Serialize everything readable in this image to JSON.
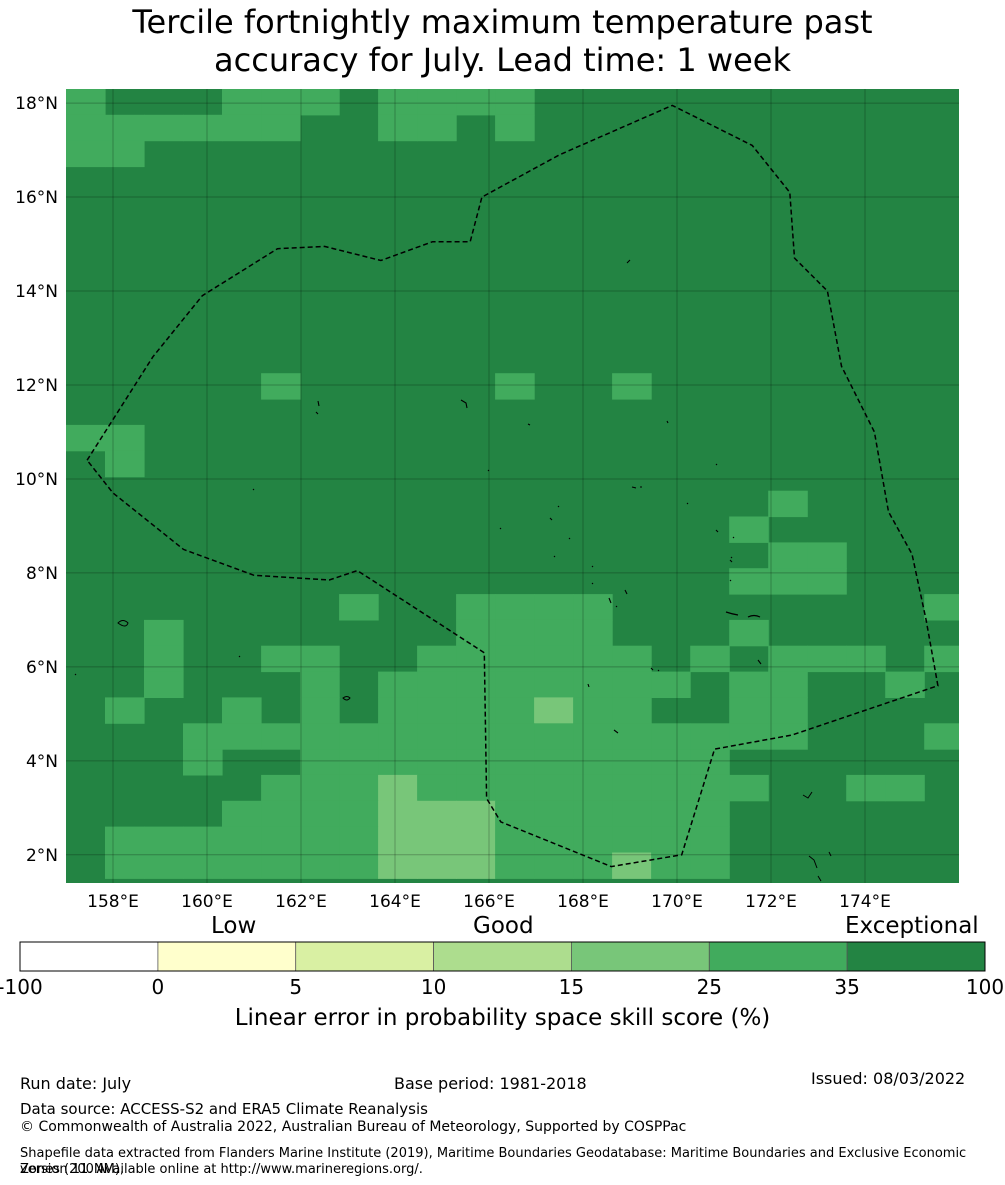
{
  "title": {
    "line1": "Tercile fortnightly maximum temperature past",
    "line2": "accuracy for July. Lead time: 1 week"
  },
  "map": {
    "lon_range": [
      157.0,
      176.0
    ],
    "lat_range": [
      1.4,
      18.3
    ],
    "lon_ticks": [
      "158°E",
      "160°E",
      "162°E",
      "164°E",
      "166°E",
      "168°E",
      "170°E",
      "172°E",
      "174°E"
    ],
    "lat_ticks": [
      "2°N",
      "4°N",
      "6°N",
      "8°N",
      "10°N",
      "12°N",
      "14°N",
      "16°N",
      "18°N"
    ],
    "base_category": 6,
    "grid_cells": [
      {
        "lon": 157.0,
        "lat": 17.75,
        "cat": 5
      },
      {
        "lon": 157.0,
        "lat": 17.2,
        "cat": 5
      },
      {
        "lon": 157.0,
        "lat": 16.65,
        "cat": 5
      },
      {
        "lon": 157.83,
        "lat": 17.2,
        "cat": 5
      },
      {
        "lon": 157.83,
        "lat": 16.65,
        "cat": 5
      },
      {
        "lon": 158.66,
        "lat": 17.2,
        "cat": 5
      },
      {
        "lon": 159.49,
        "lat": 17.2,
        "cat": 5
      },
      {
        "lon": 160.32,
        "lat": 17.75,
        "cat": 5
      },
      {
        "lon": 160.32,
        "lat": 17.2,
        "cat": 5
      },
      {
        "lon": 161.15,
        "lat": 17.75,
        "cat": 5
      },
      {
        "lon": 161.15,
        "lat": 17.2,
        "cat": 5
      },
      {
        "lon": 161.98,
        "lat": 17.75,
        "cat": 5
      },
      {
        "lon": 163.64,
        "lat": 17.75,
        "cat": 5
      },
      {
        "lon": 163.64,
        "lat": 17.2,
        "cat": 5
      },
      {
        "lon": 164.47,
        "lat": 17.75,
        "cat": 5
      },
      {
        "lon": 164.47,
        "lat": 17.2,
        "cat": 5
      },
      {
        "lon": 165.3,
        "lat": 17.75,
        "cat": 5
      },
      {
        "lon": 166.13,
        "lat": 17.75,
        "cat": 5
      },
      {
        "lon": 166.13,
        "lat": 17.2,
        "cat": 5
      },
      {
        "lon": 161.15,
        "lat": 11.7,
        "cat": 5
      },
      {
        "lon": 166.13,
        "lat": 11.7,
        "cat": 5
      },
      {
        "lon": 168.62,
        "lat": 11.7,
        "cat": 5
      },
      {
        "lon": 157.0,
        "lat": 10.6,
        "cat": 5
      },
      {
        "lon": 157.83,
        "lat": 10.6,
        "cat": 5
      },
      {
        "lon": 157.83,
        "lat": 10.05,
        "cat": 5
      },
      {
        "lon": 171.94,
        "lat": 9.2,
        "cat": 5
      },
      {
        "lon": 171.11,
        "lat": 8.65,
        "cat": 5
      },
      {
        "lon": 171.94,
        "lat": 8.1,
        "cat": 5
      },
      {
        "lon": 172.77,
        "lat": 8.1,
        "cat": 5
      },
      {
        "lon": 171.11,
        "lat": 7.55,
        "cat": 5
      },
      {
        "lon": 171.94,
        "lat": 7.55,
        "cat": 5
      },
      {
        "lon": 172.77,
        "lat": 7.55,
        "cat": 5
      },
      {
        "lon": 162.81,
        "lat": 7.0,
        "cat": 5
      },
      {
        "lon": 175.26,
        "lat": 7.0,
        "cat": 5
      },
      {
        "lon": 165.3,
        "lat": 7.0,
        "cat": 5
      },
      {
        "lon": 166.13,
        "lat": 7.0,
        "cat": 5
      },
      {
        "lon": 166.96,
        "lat": 7.0,
        "cat": 5
      },
      {
        "lon": 167.79,
        "lat": 7.0,
        "cat": 5
      },
      {
        "lon": 158.66,
        "lat": 6.45,
        "cat": 5
      },
      {
        "lon": 171.11,
        "lat": 6.45,
        "cat": 5
      },
      {
        "lon": 165.3,
        "lat": 6.45,
        "cat": 5
      },
      {
        "lon": 166.13,
        "lat": 6.45,
        "cat": 5
      },
      {
        "lon": 166.96,
        "lat": 6.45,
        "cat": 5
      },
      {
        "lon": 167.79,
        "lat": 6.45,
        "cat": 5
      },
      {
        "lon": 158.66,
        "lat": 5.9,
        "cat": 5
      },
      {
        "lon": 161.15,
        "lat": 5.9,
        "cat": 5
      },
      {
        "lon": 161.98,
        "lat": 5.9,
        "cat": 5
      },
      {
        "lon": 164.47,
        "lat": 5.9,
        "cat": 5
      },
      {
        "lon": 165.3,
        "lat": 5.9,
        "cat": 5
      },
      {
        "lon": 166.13,
        "lat": 5.9,
        "cat": 5
      },
      {
        "lon": 166.96,
        "lat": 5.9,
        "cat": 5
      },
      {
        "lon": 167.79,
        "lat": 5.9,
        "cat": 5
      },
      {
        "lon": 168.62,
        "lat": 5.9,
        "cat": 5
      },
      {
        "lon": 170.28,
        "lat": 5.9,
        "cat": 5
      },
      {
        "lon": 171.94,
        "lat": 5.9,
        "cat": 5
      },
      {
        "lon": 172.77,
        "lat": 5.9,
        "cat": 5
      },
      {
        "lon": 173.6,
        "lat": 5.9,
        "cat": 5
      },
      {
        "lon": 175.26,
        "lat": 5.9,
        "cat": 5
      },
      {
        "lon": 158.66,
        "lat": 5.35,
        "cat": 5
      },
      {
        "lon": 161.98,
        "lat": 5.35,
        "cat": 5
      },
      {
        "lon": 163.64,
        "lat": 5.35,
        "cat": 5
      },
      {
        "lon": 164.47,
        "lat": 5.35,
        "cat": 5
      },
      {
        "lon": 165.3,
        "lat": 5.35,
        "cat": 5
      },
      {
        "lon": 166.13,
        "lat": 5.35,
        "cat": 5
      },
      {
        "lon": 166.96,
        "lat": 5.35,
        "cat": 5
      },
      {
        "lon": 167.79,
        "lat": 5.35,
        "cat": 5
      },
      {
        "lon": 168.62,
        "lat": 5.35,
        "cat": 5
      },
      {
        "lon": 169.45,
        "lat": 5.35,
        "cat": 5
      },
      {
        "lon": 171.11,
        "lat": 5.35,
        "cat": 5
      },
      {
        "lon": 171.94,
        "lat": 5.35,
        "cat": 5
      },
      {
        "lon": 174.43,
        "lat": 5.35,
        "cat": 5
      },
      {
        "lon": 157.83,
        "lat": 4.8,
        "cat": 5
      },
      {
        "lon": 160.32,
        "lat": 4.8,
        "cat": 5
      },
      {
        "lon": 161.98,
        "lat": 4.8,
        "cat": 5
      },
      {
        "lon": 163.64,
        "lat": 4.8,
        "cat": 5
      },
      {
        "lon": 164.47,
        "lat": 4.8,
        "cat": 5
      },
      {
        "lon": 165.3,
        "lat": 4.8,
        "cat": 5
      },
      {
        "lon": 166.13,
        "lat": 4.8,
        "cat": 5
      },
      {
        "lon": 166.96,
        "lat": 4.8,
        "cat": 4
      },
      {
        "lon": 167.79,
        "lat": 4.8,
        "cat": 5
      },
      {
        "lon": 168.62,
        "lat": 4.8,
        "cat": 5
      },
      {
        "lon": 171.11,
        "lat": 4.8,
        "cat": 5
      },
      {
        "lon": 171.94,
        "lat": 4.8,
        "cat": 5
      },
      {
        "lon": 159.49,
        "lat": 4.25,
        "cat": 5
      },
      {
        "lon": 160.32,
        "lat": 4.25,
        "cat": 5
      },
      {
        "lon": 161.15,
        "lat": 4.25,
        "cat": 5
      },
      {
        "lon": 161.98,
        "lat": 4.25,
        "cat": 5
      },
      {
        "lon": 162.81,
        "lat": 4.25,
        "cat": 5
      },
      {
        "lon": 163.64,
        "lat": 4.25,
        "cat": 5
      },
      {
        "lon": 164.47,
        "lat": 4.25,
        "cat": 5
      },
      {
        "lon": 165.3,
        "lat": 4.25,
        "cat": 5
      },
      {
        "lon": 166.13,
        "lat": 4.25,
        "cat": 5
      },
      {
        "lon": 166.96,
        "lat": 4.25,
        "cat": 5
      },
      {
        "lon": 167.79,
        "lat": 4.25,
        "cat": 5
      },
      {
        "lon": 168.62,
        "lat": 4.25,
        "cat": 5
      },
      {
        "lon": 169.45,
        "lat": 4.25,
        "cat": 5
      },
      {
        "lon": 170.28,
        "lat": 4.25,
        "cat": 5
      },
      {
        "lon": 171.11,
        "lat": 4.25,
        "cat": 5
      },
      {
        "lon": 171.94,
        "lat": 4.25,
        "cat": 5
      },
      {
        "lon": 175.26,
        "lat": 4.25,
        "cat": 5
      },
      {
        "lon": 159.49,
        "lat": 3.7,
        "cat": 5
      },
      {
        "lon": 161.98,
        "lat": 3.7,
        "cat": 5
      },
      {
        "lon": 162.81,
        "lat": 3.7,
        "cat": 5
      },
      {
        "lon": 163.64,
        "lat": 3.7,
        "cat": 5
      },
      {
        "lon": 164.47,
        "lat": 3.7,
        "cat": 5
      },
      {
        "lon": 165.3,
        "lat": 3.7,
        "cat": 5
      },
      {
        "lon": 166.13,
        "lat": 3.7,
        "cat": 5
      },
      {
        "lon": 166.96,
        "lat": 3.7,
        "cat": 5
      },
      {
        "lon": 167.79,
        "lat": 3.7,
        "cat": 5
      },
      {
        "lon": 168.62,
        "lat": 3.7,
        "cat": 5
      },
      {
        "lon": 169.45,
        "lat": 3.7,
        "cat": 5
      },
      {
        "lon": 170.28,
        "lat": 3.7,
        "cat": 5
      },
      {
        "lon": 161.15,
        "lat": 3.15,
        "cat": 5
      },
      {
        "lon": 161.98,
        "lat": 3.15,
        "cat": 5
      },
      {
        "lon": 162.81,
        "lat": 3.15,
        "cat": 5
      },
      {
        "lon": 163.64,
        "lat": 3.15,
        "cat": 4
      },
      {
        "lon": 164.47,
        "lat": 3.15,
        "cat": 5
      },
      {
        "lon": 165.3,
        "lat": 3.15,
        "cat": 5
      },
      {
        "lon": 166.13,
        "lat": 3.15,
        "cat": 5
      },
      {
        "lon": 166.96,
        "lat": 3.15,
        "cat": 5
      },
      {
        "lon": 167.79,
        "lat": 3.15,
        "cat": 5
      },
      {
        "lon": 168.62,
        "lat": 3.15,
        "cat": 5
      },
      {
        "lon": 169.45,
        "lat": 3.15,
        "cat": 5
      },
      {
        "lon": 170.28,
        "lat": 3.15,
        "cat": 5
      },
      {
        "lon": 171.11,
        "lat": 3.15,
        "cat": 5
      },
      {
        "lon": 173.6,
        "lat": 3.15,
        "cat": 5
      },
      {
        "lon": 174.43,
        "lat": 3.15,
        "cat": 5
      },
      {
        "lon": 160.32,
        "lat": 2.6,
        "cat": 5
      },
      {
        "lon": 161.15,
        "lat": 2.6,
        "cat": 5
      },
      {
        "lon": 161.98,
        "lat": 2.6,
        "cat": 5
      },
      {
        "lon": 162.81,
        "lat": 2.6,
        "cat": 5
      },
      {
        "lon": 163.64,
        "lat": 2.6,
        "cat": 4
      },
      {
        "lon": 164.47,
        "lat": 2.6,
        "cat": 4
      },
      {
        "lon": 165.3,
        "lat": 2.6,
        "cat": 4
      },
      {
        "lon": 166.13,
        "lat": 2.6,
        "cat": 5
      },
      {
        "lon": 166.96,
        "lat": 2.6,
        "cat": 5
      },
      {
        "lon": 167.79,
        "lat": 2.6,
        "cat": 5
      },
      {
        "lon": 168.62,
        "lat": 2.6,
        "cat": 5
      },
      {
        "lon": 169.45,
        "lat": 2.6,
        "cat": 5
      },
      {
        "lon": 170.28,
        "lat": 2.6,
        "cat": 5
      },
      {
        "lon": 157.83,
        "lat": 2.05,
        "cat": 5
      },
      {
        "lon": 158.66,
        "lat": 2.05,
        "cat": 5
      },
      {
        "lon": 159.49,
        "lat": 2.05,
        "cat": 5
      },
      {
        "lon": 160.32,
        "lat": 2.05,
        "cat": 5
      },
      {
        "lon": 161.15,
        "lat": 2.05,
        "cat": 5
      },
      {
        "lon": 161.98,
        "lat": 2.05,
        "cat": 5
      },
      {
        "lon": 162.81,
        "lat": 2.05,
        "cat": 5
      },
      {
        "lon": 163.64,
        "lat": 2.05,
        "cat": 4
      },
      {
        "lon": 164.47,
        "lat": 2.05,
        "cat": 4
      },
      {
        "lon": 165.3,
        "lat": 2.05,
        "cat": 4
      },
      {
        "lon": 166.13,
        "lat": 2.05,
        "cat": 5
      },
      {
        "lon": 166.96,
        "lat": 2.05,
        "cat": 5
      },
      {
        "lon": 167.79,
        "lat": 2.05,
        "cat": 5
      },
      {
        "lon": 168.62,
        "lat": 2.05,
        "cat": 5
      },
      {
        "lon": 169.45,
        "lat": 2.05,
        "cat": 5
      },
      {
        "lon": 170.28,
        "lat": 2.05,
        "cat": 5
      },
      {
        "lon": 157.83,
        "lat": 1.5,
        "cat": 5
      },
      {
        "lon": 158.66,
        "lat": 1.5,
        "cat": 5
      },
      {
        "lon": 159.49,
        "lat": 1.5,
        "cat": 5
      },
      {
        "lon": 160.32,
        "lat": 1.5,
        "cat": 5
      },
      {
        "lon": 161.15,
        "lat": 1.5,
        "cat": 5
      },
      {
        "lon": 161.98,
        "lat": 1.5,
        "cat": 5
      },
      {
        "lon": 162.81,
        "lat": 1.5,
        "cat": 5
      },
      {
        "lon": 163.64,
        "lat": 1.5,
        "cat": 4
      },
      {
        "lon": 164.47,
        "lat": 1.5,
        "cat": 4
      },
      {
        "lon": 165.3,
        "lat": 1.5,
        "cat": 4
      },
      {
        "lon": 166.13,
        "lat": 1.5,
        "cat": 5
      },
      {
        "lon": 166.96,
        "lat": 1.5,
        "cat": 5
      },
      {
        "lon": 167.79,
        "lat": 1.5,
        "cat": 5
      },
      {
        "lon": 168.62,
        "lat": 1.5,
        "cat": 4
      },
      {
        "lon": 169.45,
        "lat": 1.5,
        "cat": 5
      },
      {
        "lon": 170.28,
        "lat": 1.5,
        "cat": 5
      }
    ],
    "eez_boundary": [
      [
        157.45,
        10.4
      ],
      [
        158.85,
        12.6
      ],
      [
        159.9,
        13.9
      ],
      [
        161.5,
        14.9
      ],
      [
        162.5,
        14.95
      ],
      [
        163.7,
        14.65
      ],
      [
        164.8,
        15.05
      ],
      [
        165.6,
        15.05
      ],
      [
        165.85,
        16.0
      ],
      [
        167.5,
        16.9
      ],
      [
        169.9,
        17.95
      ],
      [
        171.6,
        17.1
      ],
      [
        172.4,
        16.1
      ],
      [
        172.5,
        14.7
      ],
      [
        173.2,
        14.0
      ],
      [
        173.5,
        12.4
      ],
      [
        174.2,
        11.0
      ],
      [
        174.5,
        9.3
      ],
      [
        175.0,
        8.4
      ],
      [
        175.3,
        7.0
      ],
      [
        175.55,
        5.6
      ],
      [
        172.45,
        4.55
      ],
      [
        170.8,
        4.25
      ],
      [
        170.1,
        2.0
      ],
      [
        168.6,
        1.75
      ],
      [
        166.25,
        2.7
      ],
      [
        165.95,
        3.2
      ],
      [
        165.9,
        6.3
      ],
      [
        163.2,
        8.05
      ],
      [
        162.6,
        7.85
      ],
      [
        161.0,
        7.95
      ],
      [
        159.5,
        8.5
      ],
      [
        158.0,
        9.7
      ],
      [
        157.45,
        10.4
      ]
    ]
  },
  "colorbar": {
    "category_labels": [
      "Low",
      "Good",
      "Exceptional"
    ],
    "ticks": [
      "-100",
      "0",
      "5",
      "10",
      "15",
      "25",
      "35",
      "100"
    ],
    "colors": [
      "#ffffff",
      "#ffffcc",
      "#d9f0a3",
      "#addd8e",
      "#78c679",
      "#41ab5d",
      "#238443"
    ],
    "caption": "Linear error in probability space skill score (%)"
  },
  "footer": {
    "run_date": "Run date: July",
    "base_period": "Base period: 1981-2018",
    "issued": "Issued: 08/03/2022",
    "data_source": "Data source: ACCESS-S2 and ERA5 Climate Reanalysis",
    "copyright": "© Commonwealth of Australia 2022, Australian Bureau of Meteorology, Supported by COSPPac",
    "shapefile_line1": "Shapefile data extracted from Flanders Marine Institute (2019), Maritime Boundaries Geodatabase: Maritime Boundaries and Exclusive Economic Zones (200NM),",
    "shapefile_line2": "version 11. Available online at http://www.marineregions.org/."
  }
}
